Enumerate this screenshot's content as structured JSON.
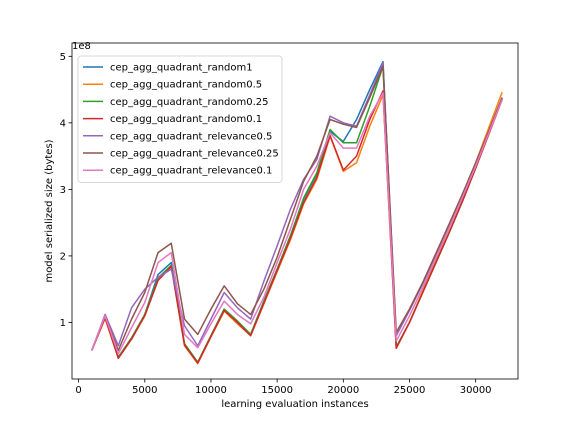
{
  "chart_data": {
    "type": "line",
    "title": "",
    "xlabel": "learning evaluation instances",
    "ylabel": "model serialized size (bytes)",
    "y_offset_text": "1e8",
    "xlim": [
      -500,
      33200
    ],
    "ylim": [
      0.15,
      5.2
    ],
    "xticks": [
      0,
      5000,
      10000,
      15000,
      20000,
      25000,
      30000
    ],
    "xtick_labels": [
      "0",
      "5000",
      "10000",
      "15000",
      "20000",
      "25000",
      "30000"
    ],
    "yticks": [
      1,
      2,
      3,
      4,
      5
    ],
    "ytick_labels": [
      "1",
      "2",
      "3",
      "4",
      "5"
    ],
    "grid": false,
    "legend_position": "upper-left",
    "x": [
      1000,
      2000,
      3000,
      4000,
      5000,
      6000,
      7000,
      8000,
      9000,
      10000,
      11000,
      12000,
      13000,
      14000,
      15000,
      16000,
      17000,
      18000,
      19000,
      20000,
      21000,
      22000,
      23000,
      24000,
      25000,
      26000,
      27000,
      28000,
      29000,
      30000,
      31000,
      32000
    ],
    "series": [
      {
        "name": "cep_agg_quadrant_random1",
        "color": "#1f77b4",
        "values": [
          0.58,
          1.08,
          0.47,
          0.76,
          1.12,
          1.72,
          1.9,
          0.68,
          0.4,
          0.8,
          1.2,
          1.02,
          0.82,
          1.32,
          1.8,
          2.3,
          2.85,
          3.23,
          3.87,
          3.72,
          4.05,
          4.5,
          4.92,
          0.63,
          1.0,
          1.45,
          1.9,
          2.35,
          2.82,
          3.32,
          3.85,
          4.37
        ]
      },
      {
        "name": "cep_agg_quadrant_random0.5",
        "color": "#ff7f0e",
        "values": [
          0.58,
          1.06,
          0.47,
          0.75,
          1.1,
          1.64,
          1.85,
          0.65,
          0.38,
          0.78,
          1.17,
          0.98,
          0.8,
          1.28,
          1.76,
          2.24,
          2.78,
          3.15,
          3.8,
          3.27,
          3.4,
          3.95,
          4.42,
          0.62,
          1.0,
          1.47,
          1.95,
          2.42,
          2.9,
          3.4,
          3.93,
          4.46
        ]
      },
      {
        "name": "cep_agg_quadrant_random0.25",
        "color": "#2ca02c",
        "values": [
          0.58,
          1.08,
          0.48,
          0.77,
          1.12,
          1.67,
          1.86,
          0.68,
          0.4,
          0.8,
          1.2,
          1.02,
          0.82,
          1.32,
          1.8,
          2.3,
          2.87,
          3.25,
          3.9,
          3.7,
          3.7,
          4.25,
          4.85,
          0.63,
          1.0,
          1.45,
          1.9,
          2.35,
          2.82,
          3.32,
          3.85,
          4.37
        ]
      },
      {
        "name": "cep_agg_quadrant_random0.1",
        "color": "#d62728",
        "values": [
          0.58,
          1.07,
          0.46,
          0.75,
          1.1,
          1.63,
          1.84,
          0.66,
          0.39,
          0.79,
          1.18,
          1.0,
          0.8,
          1.29,
          1.78,
          2.26,
          2.8,
          3.18,
          3.81,
          3.29,
          3.5,
          4.05,
          4.48,
          0.61,
          1.0,
          1.45,
          1.9,
          2.35,
          2.82,
          3.32,
          3.83,
          4.35
        ]
      },
      {
        "name": "cep_agg_quadrant_relevance0.5",
        "color": "#9467bd",
        "values": [
          0.58,
          1.12,
          0.65,
          1.22,
          1.5,
          1.68,
          1.8,
          0.95,
          0.65,
          1.05,
          1.45,
          1.22,
          1.05,
          1.62,
          2.15,
          2.7,
          3.15,
          3.45,
          4.1,
          4.0,
          3.95,
          4.42,
          4.9,
          0.8,
          1.18,
          1.58,
          2.02,
          2.45,
          2.9,
          3.37,
          3.86,
          4.36
        ]
      },
      {
        "name": "cep_agg_quadrant_relevance0.25",
        "color": "#8c564b",
        "values": [
          0.58,
          1.1,
          0.58,
          1.05,
          1.45,
          2.05,
          2.19,
          1.05,
          0.82,
          1.2,
          1.55,
          1.28,
          1.12,
          1.5,
          1.98,
          2.55,
          3.12,
          3.5,
          4.05,
          3.98,
          3.93,
          4.38,
          4.85,
          0.85,
          1.2,
          1.6,
          2.04,
          2.48,
          2.93,
          3.4,
          3.88,
          4.38
        ]
      },
      {
        "name": "cep_agg_quadrant_relevance0.1",
        "color": "#e377c2",
        "values": [
          0.58,
          1.1,
          0.53,
          0.92,
          1.3,
          1.9,
          2.05,
          0.82,
          0.62,
          0.98,
          1.32,
          1.12,
          0.98,
          1.38,
          1.9,
          2.4,
          3.0,
          3.35,
          3.85,
          3.62,
          3.62,
          4.1,
          4.45,
          0.72,
          1.1,
          1.52,
          1.97,
          2.42,
          2.88,
          3.35,
          3.85,
          4.35
        ]
      }
    ]
  }
}
